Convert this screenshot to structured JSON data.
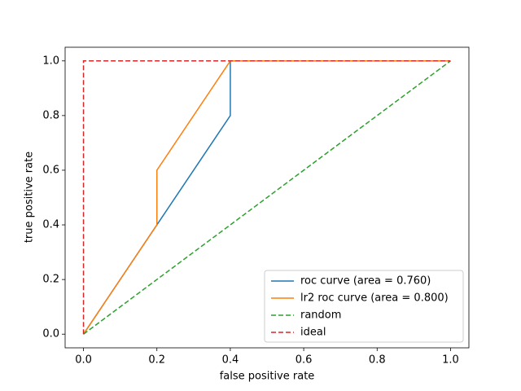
{
  "chart_data": {
    "type": "line",
    "xlabel": "false positive rate",
    "ylabel": "true positive rate",
    "xlim": [
      -0.05,
      1.05
    ],
    "ylim": [
      -0.05,
      1.05
    ],
    "xticks": [
      {
        "value": 0,
        "label": "0.0"
      },
      0.2,
      0.4,
      0.6,
      0.8,
      {
        "value": 1,
        "label": "1.0"
      }
    ],
    "yticks": [
      {
        "value": 0,
        "label": "0.0"
      },
      0.2,
      0.4,
      0.6,
      0.8,
      {
        "value": 1,
        "label": "1.0"
      }
    ],
    "legend": "lower right",
    "series": [
      {
        "name": "roc curve (area = 0.760)",
        "color": "#1f77b4",
        "linestyle": "solid",
        "x": [
          0,
          0.2,
          0.4,
          0.4,
          1
        ],
        "values": [
          0,
          0.4,
          0.8,
          1,
          1
        ]
      },
      {
        "name": "lr2 roc curve (area = 0.800)",
        "color": "#ff7f0e",
        "linestyle": "solid",
        "x": [
          0,
          0.2,
          0.2,
          0.4,
          1
        ],
        "values": [
          0,
          0.4,
          0.6,
          1,
          1
        ]
      },
      {
        "name": "random",
        "color": "#2ca02c",
        "linestyle": "dashed",
        "x": [
          0,
          1
        ],
        "values": [
          0,
          1
        ]
      },
      {
        "name": "ideal",
        "color": "#d62728",
        "linestyle": "dashed",
        "x": [
          0,
          0,
          1
        ],
        "values": [
          0,
          1,
          1
        ]
      }
    ]
  }
}
